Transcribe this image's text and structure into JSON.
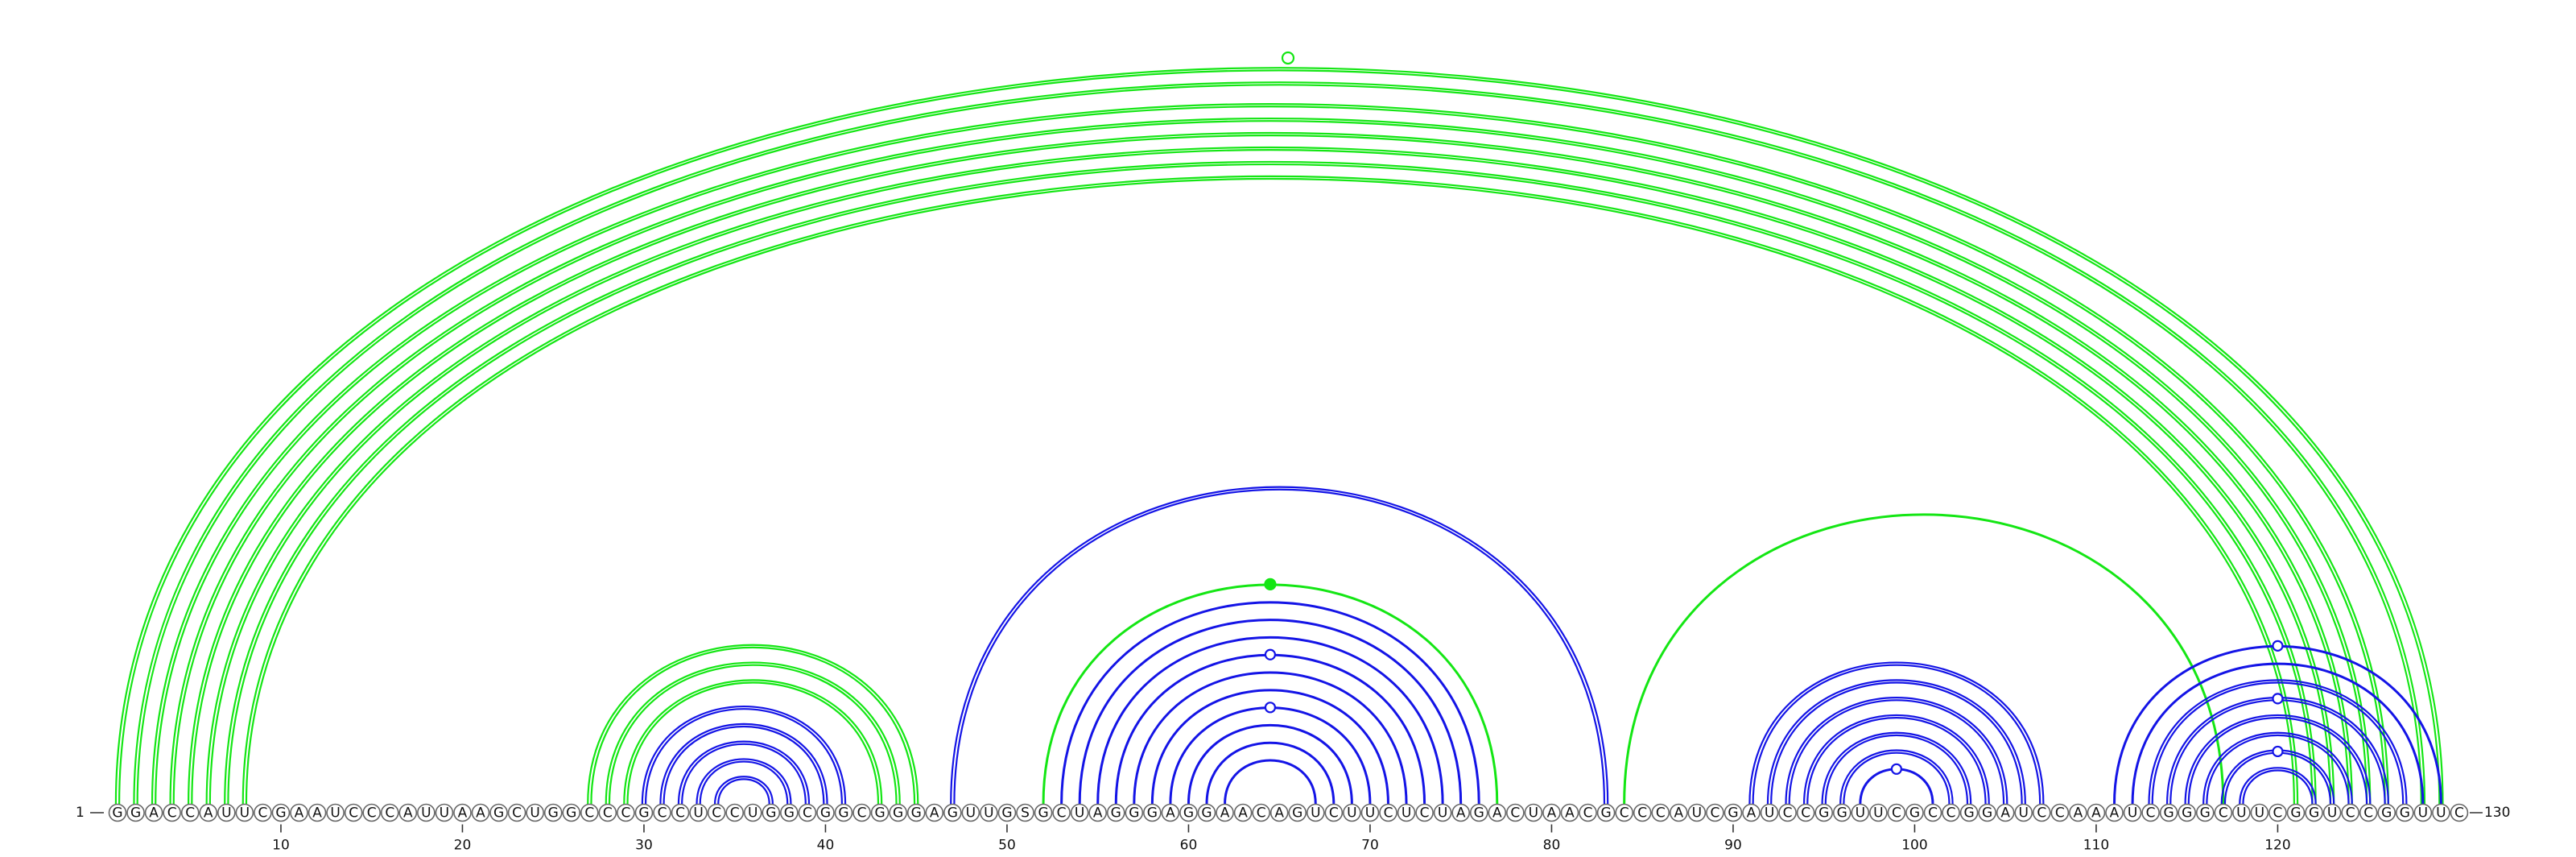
{
  "diagram": {
    "type": "rna-arc-diagram",
    "sequence": "GGACCAUUCGAAUCCCAUUAAGCUGGCCCGCCUCCUGGCGGCGGGAGUUGSGCUAGGGAGGAACAGUCUUCUCUAGACUAACGCCCAUCGAUCCGGUUCGCCGGAUCCAAAUCGGGCUUCGGUCCGGUUC",
    "start_label": "1",
    "end_label": "130",
    "ticks": [
      10,
      20,
      30,
      40,
      50,
      60,
      70,
      80,
      90,
      100,
      110,
      120
    ],
    "colors": {
      "blue": "#1414e6",
      "green": "#14e614"
    },
    "arcs": [
      {
        "i": 1,
        "j": 129,
        "color": "green",
        "double": true
      },
      {
        "i": 2,
        "j": 128,
        "color": "green",
        "double": true
      },
      {
        "i": 3,
        "j": 126,
        "color": "green",
        "double": true
      },
      {
        "i": 4,
        "j": 125,
        "color": "green",
        "double": true
      },
      {
        "i": 5,
        "j": 124,
        "color": "green",
        "double": true
      },
      {
        "i": 6,
        "j": 123,
        "color": "green",
        "double": true
      },
      {
        "i": 7,
        "j": 122,
        "color": "green",
        "double": true
      },
      {
        "i": 8,
        "j": 121,
        "color": "green",
        "double": true
      },
      {
        "i": 27,
        "j": 45,
        "color": "green",
        "double": true
      },
      {
        "i": 28,
        "j": 44,
        "color": "green",
        "double": true
      },
      {
        "i": 29,
        "j": 43,
        "color": "green",
        "double": true
      },
      {
        "i": 30,
        "j": 41,
        "color": "blue",
        "double": true
      },
      {
        "i": 31,
        "j": 40,
        "color": "blue",
        "double": true
      },
      {
        "i": 32,
        "j": 39,
        "color": "blue",
        "double": true
      },
      {
        "i": 33,
        "j": 38,
        "color": "blue",
        "double": true
      },
      {
        "i": 34,
        "j": 37,
        "color": "blue",
        "double": true
      },
      {
        "i": 47,
        "j": 83,
        "color": "blue",
        "double": true
      },
      {
        "i": 52,
        "j": 77,
        "color": "green",
        "double": false,
        "marker": "filled"
      },
      {
        "i": 53,
        "j": 76,
        "color": "blue",
        "double": false
      },
      {
        "i": 54,
        "j": 75,
        "color": "blue",
        "double": false
      },
      {
        "i": 55,
        "j": 74,
        "color": "blue",
        "double": false
      },
      {
        "i": 56,
        "j": 73,
        "color": "blue",
        "double": false,
        "marker": "open"
      },
      {
        "i": 57,
        "j": 72,
        "color": "blue",
        "double": false
      },
      {
        "i": 58,
        "j": 71,
        "color": "blue",
        "double": false
      },
      {
        "i": 59,
        "j": 70,
        "color": "blue",
        "double": false,
        "marker": "open"
      },
      {
        "i": 60,
        "j": 69,
        "color": "blue",
        "double": false
      },
      {
        "i": 61,
        "j": 68,
        "color": "blue",
        "double": false
      },
      {
        "i": 62,
        "j": 67,
        "color": "blue",
        "double": false
      },
      {
        "i": 84,
        "j": 117,
        "color": "green",
        "double": false
      },
      {
        "i": 91,
        "j": 107,
        "color": "blue",
        "double": true
      },
      {
        "i": 92,
        "j": 106,
        "color": "blue",
        "double": true
      },
      {
        "i": 93,
        "j": 105,
        "color": "blue",
        "double": true
      },
      {
        "i": 94,
        "j": 104,
        "color": "blue",
        "double": true
      },
      {
        "i": 95,
        "j": 103,
        "color": "blue",
        "double": true
      },
      {
        "i": 96,
        "j": 102,
        "color": "blue",
        "double": true
      },
      {
        "i": 97,
        "j": 101,
        "color": "blue",
        "double": false,
        "marker": "open"
      },
      {
        "i": 111,
        "j": 129,
        "color": "blue",
        "double": false,
        "marker": "open"
      },
      {
        "i": 112,
        "j": 128,
        "color": "blue",
        "double": false
      },
      {
        "i": 113,
        "j": 127,
        "color": "blue",
        "double": true
      },
      {
        "i": 114,
        "j": 126,
        "color": "blue",
        "double": true,
        "marker": "open"
      },
      {
        "i": 115,
        "j": 125,
        "color": "blue",
        "double": true
      },
      {
        "i": 116,
        "j": 124,
        "color": "blue",
        "double": true
      },
      {
        "i": 117,
        "j": 123,
        "color": "blue",
        "double": true,
        "marker": "open"
      },
      {
        "i": 118,
        "j": 122,
        "color": "blue",
        "double": true
      }
    ],
    "top_marker": {
      "color": "green",
      "style": "open"
    }
  }
}
